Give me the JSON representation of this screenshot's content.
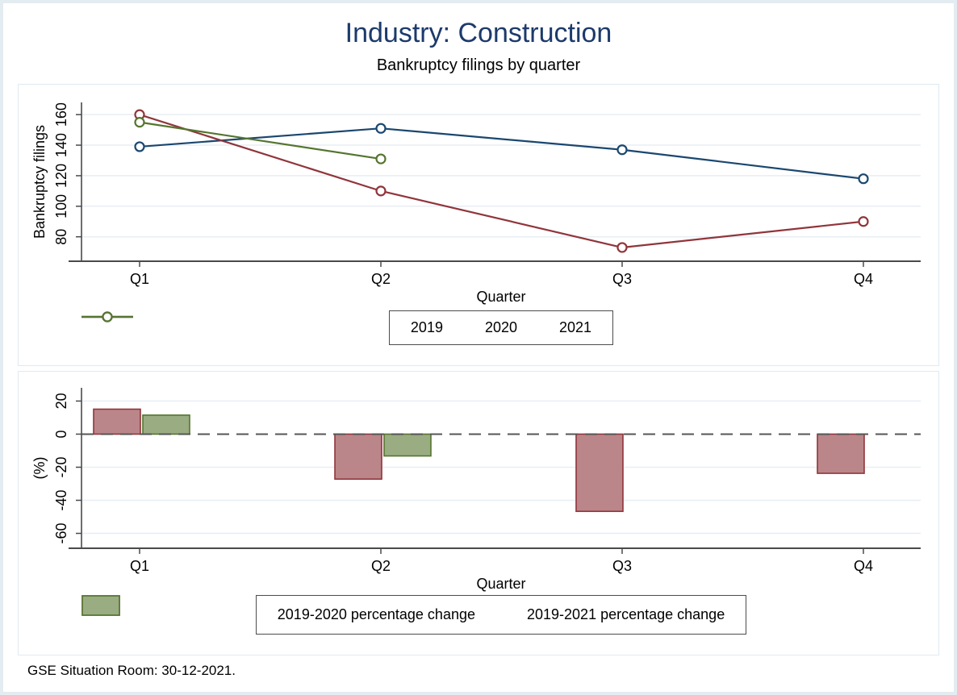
{
  "header": {
    "title": "Industry: Construction",
    "subtitle": "Bankruptcy filings by quarter"
  },
  "footer": {
    "note": "GSE Situation Room: 30-12-2021."
  },
  "colors": {
    "title_text": "#1c3a6b",
    "navy": "#1a476f",
    "maroon": "#90353b",
    "green": "#55752f",
    "maroon_fill": "#bb8689",
    "green_fill": "#99ac82",
    "grid": "#e8eef4",
    "axis": "#4a4a4a",
    "zero_line": "#555555",
    "page_border": "#e3edf1",
    "panel_border": "#e0eaf0",
    "legend_border": "#4d4d4d"
  },
  "chart_data": [
    {
      "type": "line",
      "title": "Bankruptcy filings by quarter",
      "categories": [
        "Q1",
        "Q2",
        "Q3",
        "Q4"
      ],
      "series": [
        {
          "name": "2019",
          "color": "#1a476f",
          "values": [
            139,
            151,
            137,
            118
          ]
        },
        {
          "name": "2020",
          "color": "#90353b",
          "values": [
            160,
            110,
            73,
            90
          ]
        },
        {
          "name": "2021",
          "color": "#55752f",
          "values": [
            155,
            131,
            null,
            null
          ]
        }
      ],
      "xlabel": "Quarter",
      "ylabel": "Bankruptcy filings",
      "yticks": [
        80,
        100,
        120,
        140,
        160
      ],
      "ylim": [
        64,
        168
      ],
      "grid": true,
      "marker": "hollow-circle",
      "legend_position": "bottom"
    },
    {
      "type": "bar",
      "categories": [
        "Q1",
        "Q2",
        "Q3",
        "Q4"
      ],
      "series": [
        {
          "name": "2019-2020 percentage change",
          "fill": "#bb8689",
          "stroke": "#90353b",
          "values": [
            15.1,
            -27.2,
            -46.7,
            -23.7
          ]
        },
        {
          "name": "2019-2021 percentage change",
          "fill": "#99ac82",
          "stroke": "#55752f",
          "values": [
            11.5,
            -13.2,
            null,
            null
          ]
        }
      ],
      "xlabel": "Quarter",
      "ylabel": "(%)",
      "yticks": [
        20,
        0,
        -20,
        -40,
        -60
      ],
      "ylim": [
        -69,
        28
      ],
      "zero_line": "dashed",
      "grid": true,
      "legend_position": "bottom"
    }
  ]
}
